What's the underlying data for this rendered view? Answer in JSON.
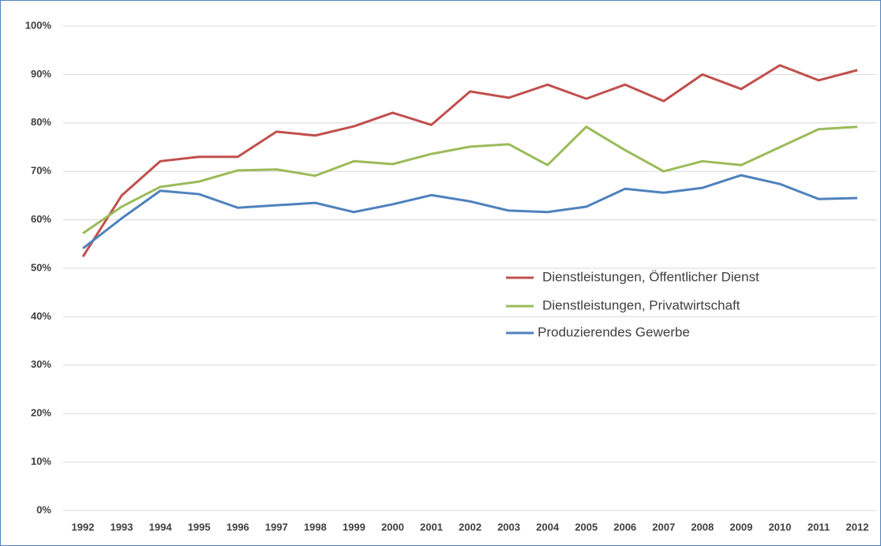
{
  "chart_data": {
    "type": "line",
    "categories": [
      "1992",
      "1993",
      "1994",
      "1995",
      "1996",
      "1997",
      "1998",
      "1999",
      "2000",
      "2001",
      "2002",
      "2003",
      "2004",
      "2005",
      "2006",
      "2007",
      "2008",
      "2009",
      "2010",
      "2011",
      "2012"
    ],
    "series": [
      {
        "name": "Dienstleistungen, Öffentlicher Dienst",
        "color": "#c0504d",
        "values": [
          52.4,
          65.0,
          72.1,
          73.0,
          73.0,
          78.2,
          77.4,
          79.3,
          82.1,
          79.6,
          86.5,
          85.2,
          87.9,
          85.0,
          87.9,
          84.5,
          90.0,
          87.0,
          91.9,
          88.8,
          90.9
        ]
      },
      {
        "name": "Dienstleistungen, Privatwirtschaft",
        "color": "#9bbb59",
        "values": [
          57.2,
          62.7,
          66.8,
          67.9,
          70.2,
          70.4,
          69.1,
          72.1,
          71.5,
          73.6,
          75.1,
          75.6,
          71.3,
          79.2,
          74.4,
          70.0,
          72.1,
          71.3,
          75.0,
          78.7,
          79.2
        ]
      },
      {
        "name": "Produzierendes Gewerbe",
        "color": "#4f81bd",
        "values": [
          54.1,
          60.3,
          66.0,
          65.3,
          62.5,
          63.0,
          63.5,
          61.6,
          63.2,
          65.1,
          63.8,
          61.9,
          61.6,
          62.7,
          66.4,
          65.6,
          66.6,
          69.2,
          67.4,
          64.3,
          64.5
        ]
      }
    ],
    "ylim": [
      0,
      100
    ],
    "yticks": [
      {
        "value": 0,
        "label": "0%"
      },
      {
        "value": 10,
        "label": "10%"
      },
      {
        "value": 20,
        "label": "20%"
      },
      {
        "value": 30,
        "label": "30%"
      },
      {
        "value": 40,
        "label": "40%"
      },
      {
        "value": 50,
        "label": "50%"
      },
      {
        "value": 60,
        "label": "60%"
      },
      {
        "value": 70,
        "label": "70%"
      },
      {
        "value": 80,
        "label": "80%"
      },
      {
        "value": 90,
        "label": "90%"
      },
      {
        "value": 100,
        "label": "100%"
      }
    ],
    "grid": true
  }
}
